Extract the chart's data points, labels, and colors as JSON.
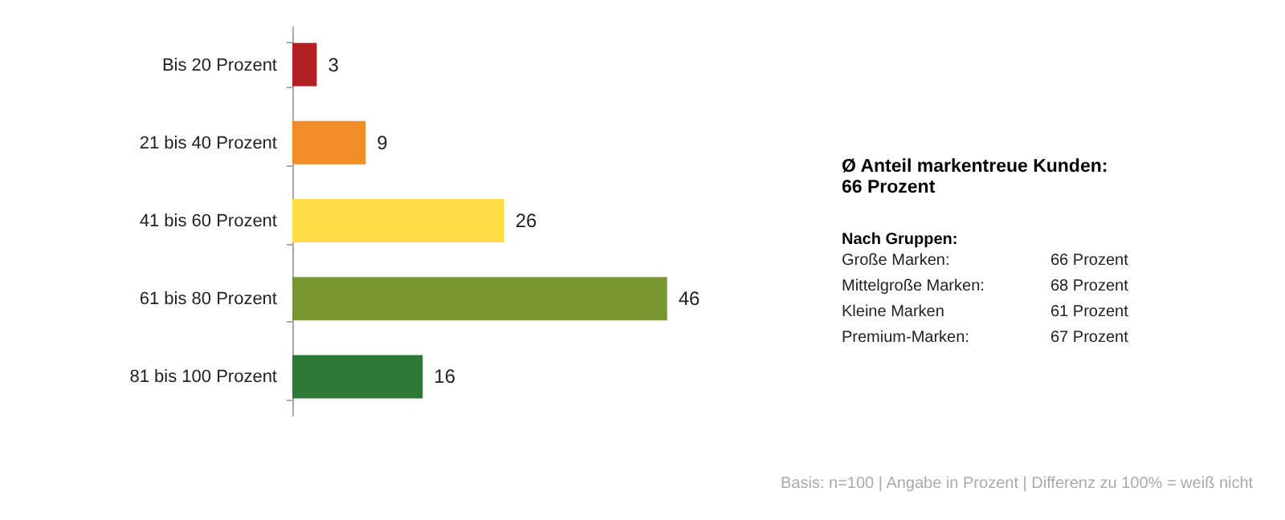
{
  "chart_data": {
    "type": "bar",
    "orientation": "horizontal",
    "data_labels": true,
    "categories": [
      "Bis 20 Prozent",
      "21 bis 40 Prozent",
      "41 bis 60 Prozent",
      "61 bis 80 Prozent",
      "81 bis 100 Prozent"
    ],
    "values": [
      3,
      9,
      26,
      46,
      16
    ],
    "colors": [
      "#b11f24",
      "#f08d29",
      "#fddc44",
      "#77972e",
      "#2b7935"
    ],
    "annotations": [
      "Ø Anteil markentreue Kunden:",
      "66 Prozent",
      "Nach Gruppen:",
      "Große Marken:",
      "66 Prozent",
      "Mittelgroße Marken:",
      "68 Prozent",
      "Kleine Marken",
      "61 Prozent",
      "Premium-Marken:",
      "67 Prozent",
      "Basis: n=100 | Angabe in Prozent | Differenz zu 100% = weiß nicht"
    ]
  }
}
